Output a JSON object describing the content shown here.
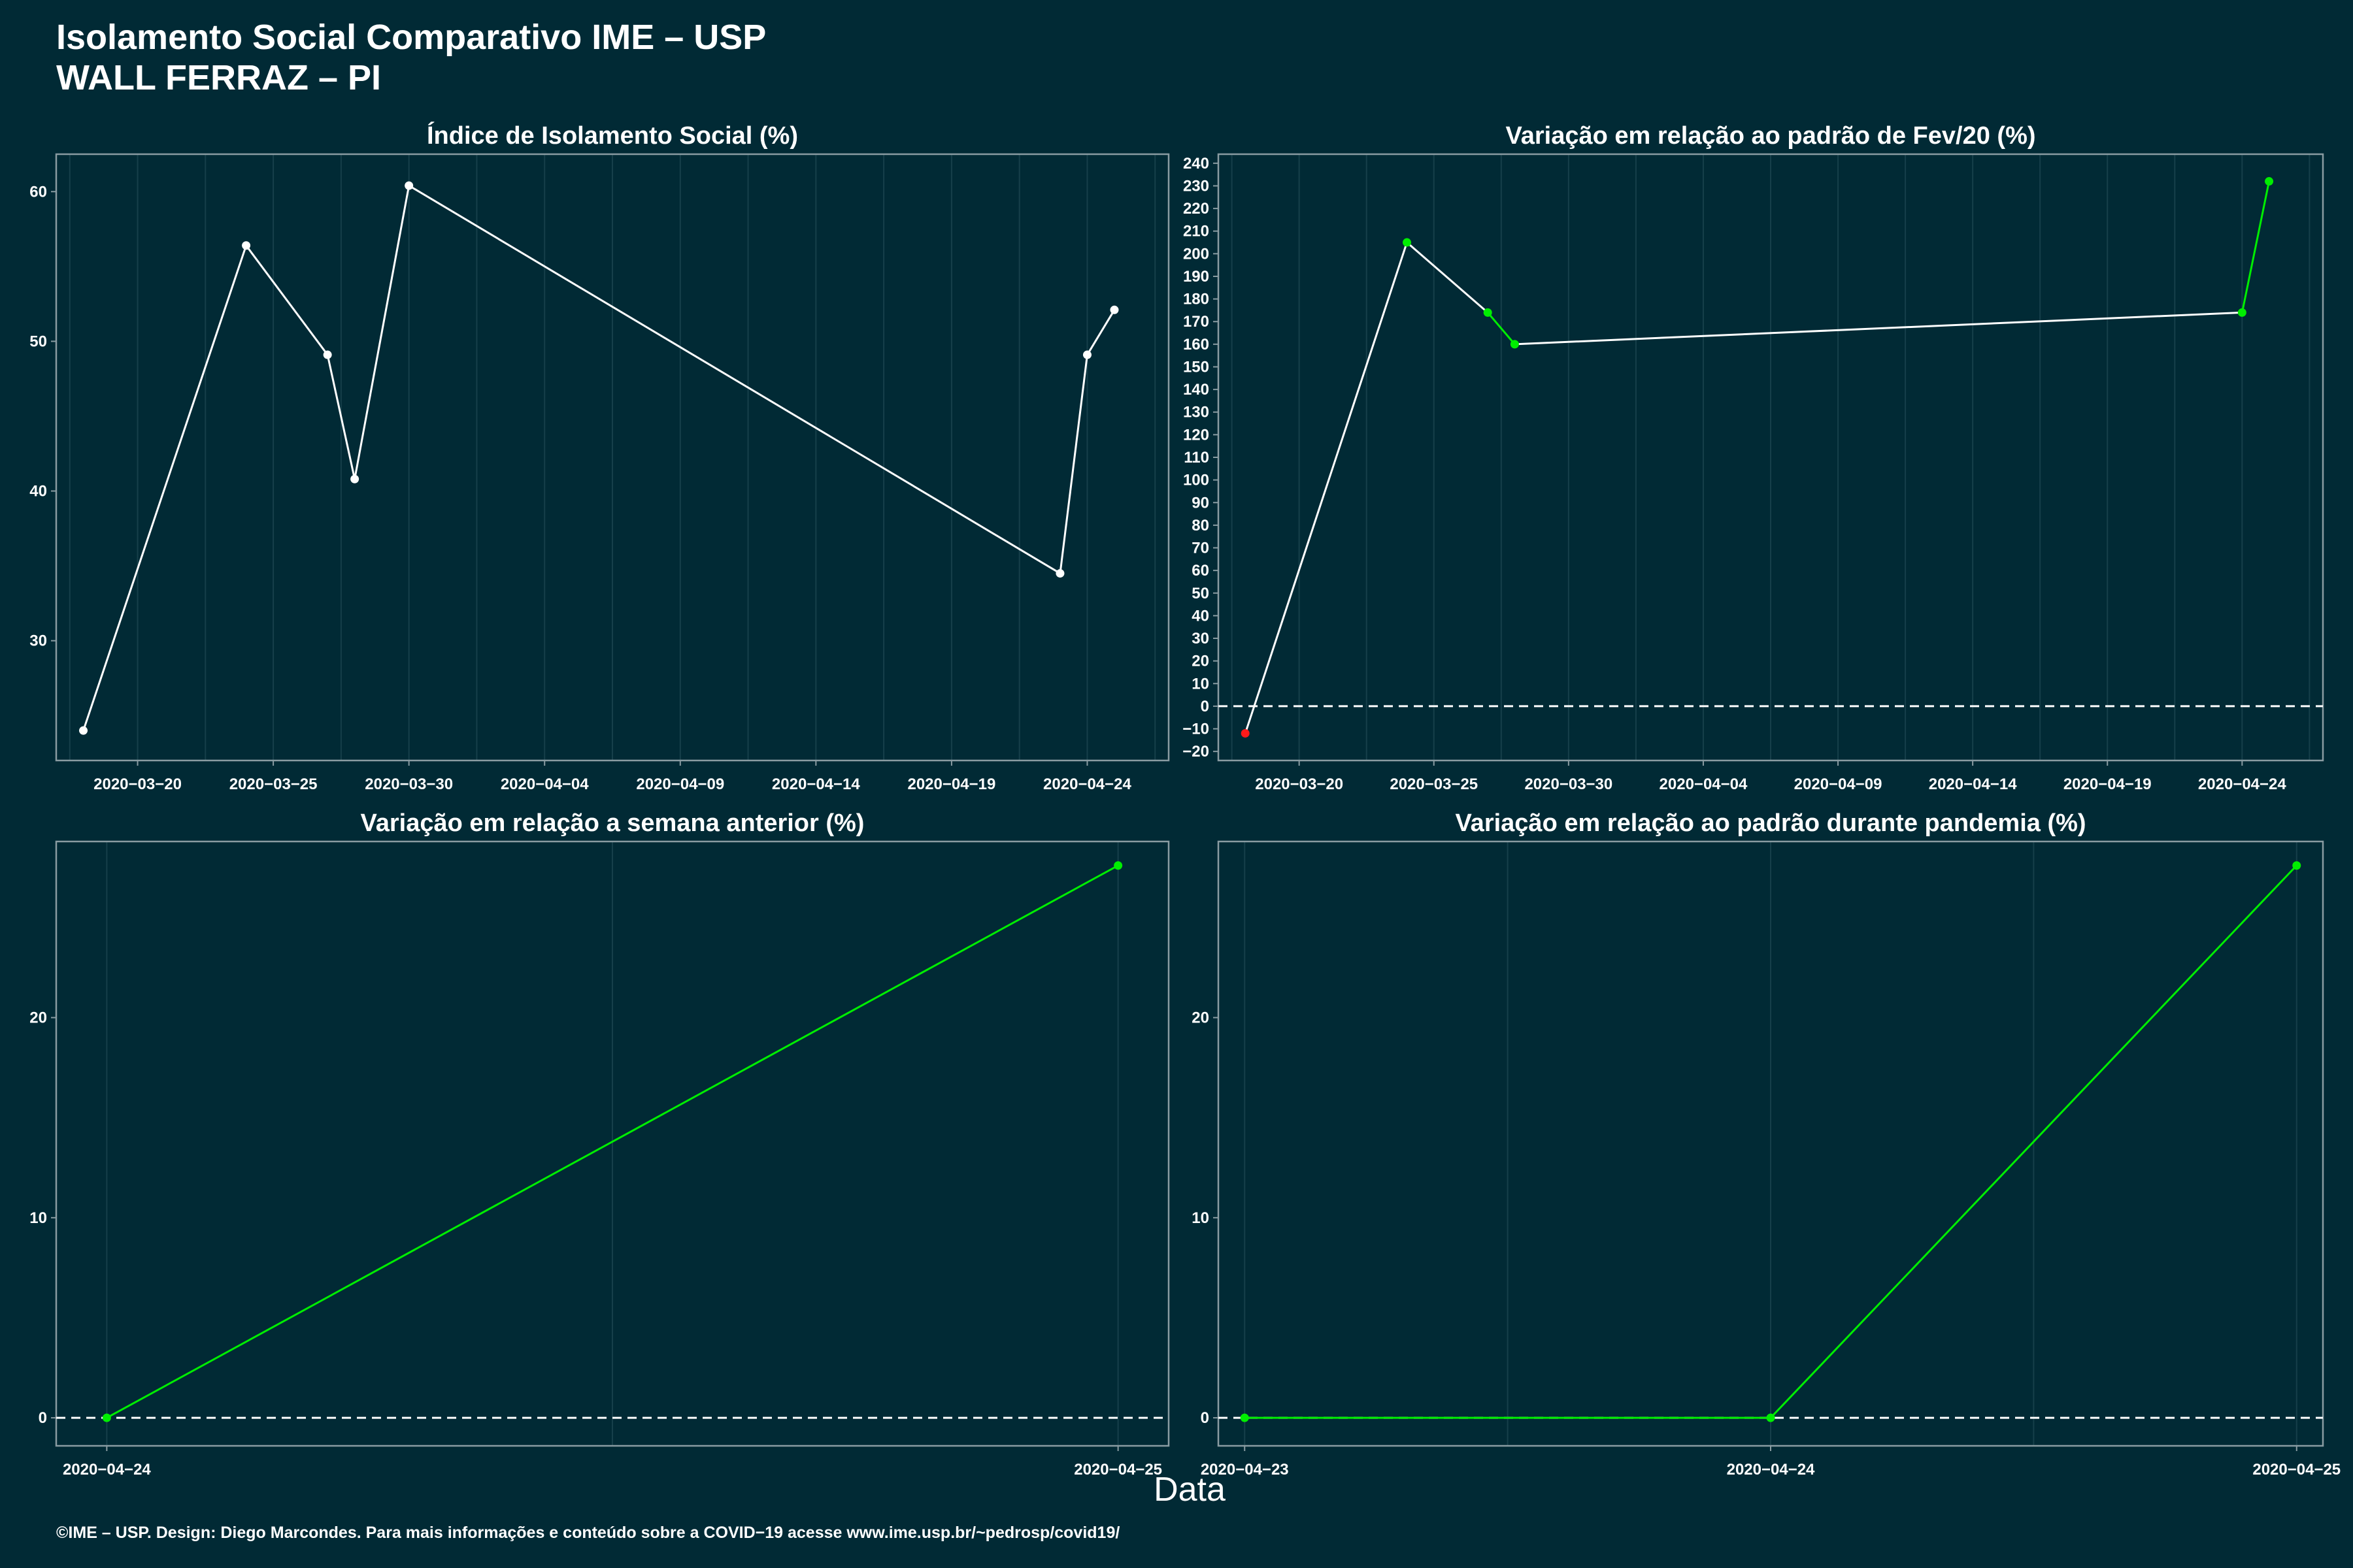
{
  "header": {
    "title_line1": "Isolamento Social Comparativo IME – USP",
    "title_line2": "WALL FERRAZ – PI"
  },
  "x_axis_title": "Data",
  "caption": "©IME – USP. Design: Diego Marcondes. Para mais informações e conteúdo sobre a COVID−19 acesse www.ime.usp.br/~pedrosp/covid19/",
  "colors": {
    "background": "#012a35",
    "panel_border": "#8a9ca2",
    "grid": "#163f4a",
    "white_series": "#ffffff",
    "positive": "#00ee00",
    "negative": "#ff1a1a"
  },
  "chart_data": [
    {
      "id": "isolamento",
      "type": "line",
      "title": "Índice de Isolamento Social (%)",
      "x_type": "date",
      "xlim": [
        "2020-03-17",
        "2020-04-27"
      ],
      "x_ticks": [
        "2020-03-20",
        "2020-03-25",
        "2020-03-30",
        "2020-04-04",
        "2020-04-09",
        "2020-04-14",
        "2020-04-19",
        "2020-04-24"
      ],
      "ylim": [
        22,
        62.5
      ],
      "y_ticks": [
        30,
        40,
        50,
        60
      ],
      "zero_line": false,
      "series": [
        {
          "color": "white",
          "points": [
            {
              "x": "2020-03-18",
              "y": 24.0
            },
            {
              "x": "2020-03-24",
              "y": 56.4
            },
            {
              "x": "2020-03-27",
              "y": 49.1
            },
            {
              "x": "2020-03-28",
              "y": 40.8
            },
            {
              "x": "2020-03-30",
              "y": 60.4
            },
            {
              "x": "2020-04-23",
              "y": 34.5
            },
            {
              "x": "2020-04-24",
              "y": 49.1
            },
            {
              "x": "2020-04-25",
              "y": 52.1
            }
          ]
        }
      ]
    },
    {
      "id": "fev",
      "type": "line",
      "title": "Variação em relação ao padrão de Fev/20 (%)",
      "x_type": "date",
      "xlim": [
        "2020-03-17",
        "2020-04-27"
      ],
      "x_ticks": [
        "2020-03-20",
        "2020-03-25",
        "2020-03-30",
        "2020-04-04",
        "2020-04-09",
        "2020-04-14",
        "2020-04-19",
        "2020-04-24"
      ],
      "ylim": [
        -24,
        244
      ],
      "y_ticks": [
        -20,
        -10,
        0,
        10,
        20,
        30,
        40,
        50,
        60,
        70,
        80,
        90,
        100,
        110,
        120,
        130,
        140,
        150,
        160,
        170,
        180,
        190,
        200,
        210,
        220,
        230,
        240
      ],
      "zero_line": true,
      "series": [
        {
          "points": [
            {
              "x": "2020-03-18",
              "y": -12,
              "color": "red"
            },
            {
              "x": "2020-03-24",
              "y": 205,
              "color": "green"
            },
            {
              "x": "2020-03-27",
              "y": 174,
              "color": "green"
            },
            {
              "x": "2020-03-28",
              "y": 160,
              "color": "green"
            },
            {
              "x": "2020-04-24",
              "y": 174,
              "color": "green"
            },
            {
              "x": "2020-04-25",
              "y": 232,
              "color": "green"
            }
          ],
          "segment_colors": [
            "white",
            "white",
            "green",
            "white",
            "green"
          ]
        }
      ]
    },
    {
      "id": "semana",
      "type": "line",
      "title": "Variação em relação a semana anterior (%)",
      "x_type": "date",
      "xlim": [
        "2020-04-23.95",
        "2020-04-25.05"
      ],
      "x_ticks": [
        "2020-04-24",
        "2020-04-25"
      ],
      "ylim": [
        -1.4,
        28.8
      ],
      "y_ticks": [
        0,
        10,
        20
      ],
      "zero_line": true,
      "series": [
        {
          "color": "green",
          "points": [
            {
              "x": "2020-04-24",
              "y": 0
            },
            {
              "x": "2020-04-25",
              "y": 27.6
            }
          ]
        }
      ]
    },
    {
      "id": "pandemia",
      "type": "line",
      "title": "Variação em relação ao padrão durante pandemia (%)",
      "x_type": "date",
      "xlim": [
        "2020-04-22.95",
        "2020-04-25.05"
      ],
      "x_ticks": [
        "2020-04-23",
        "2020-04-24",
        "2020-04-25"
      ],
      "ylim": [
        -1.4,
        28.8
      ],
      "y_ticks": [
        0,
        10,
        20
      ],
      "zero_line": true,
      "series": [
        {
          "color": "green",
          "points": [
            {
              "x": "2020-04-23",
              "y": 0
            },
            {
              "x": "2020-04-24",
              "y": 0
            },
            {
              "x": "2020-04-25",
              "y": 27.6
            }
          ]
        }
      ]
    }
  ]
}
